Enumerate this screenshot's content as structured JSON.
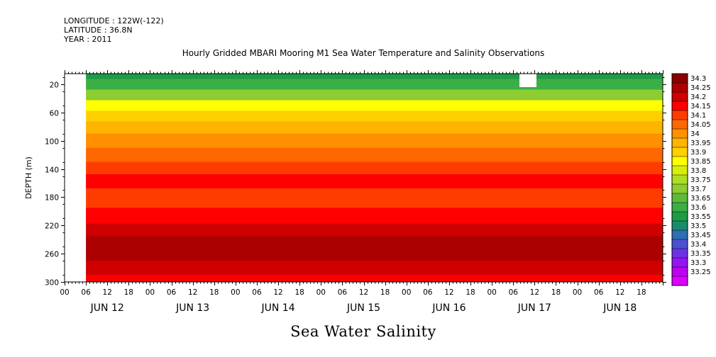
{
  "header": {
    "longitude": "LONGITUDE : 122W(-122)",
    "latitude": "LATITUDE : 36.8N",
    "year": "YEAR : 2011"
  },
  "chart_data": {
    "type": "heatmap",
    "title": "Hourly Gridded MBARI Mooring M1 Sea Water Temperature and Salinity Observations",
    "xlabel": "Sea Water Salinity",
    "ylabel": "DEPTH (m)",
    "x_hour_ticks": [
      "00",
      "06",
      "12",
      "18",
      "00",
      "06",
      "12",
      "18",
      "00",
      "06",
      "12",
      "18",
      "00",
      "06",
      "12",
      "18",
      "00",
      "06",
      "12",
      "18",
      "00",
      "06",
      "12",
      "18",
      "00",
      "06",
      "12",
      "18"
    ],
    "x_day_labels": [
      "JUN 12",
      "JUN 13",
      "JUN 14",
      "JUN 15",
      "JUN 16",
      "JUN 17",
      "JUN 18"
    ],
    "x_range_hours": [
      0,
      168
    ],
    "data_start_hour": 6,
    "y_ticks": [
      20,
      60,
      100,
      140,
      180,
      220,
      260,
      300
    ],
    "y_range": [
      300,
      5
    ],
    "y_reversed": true,
    "colorbar_levels": [
      "34.3",
      "34.25",
      "34.2",
      "34.15",
      "34.1",
      "34.05",
      "34",
      "33.95",
      "33.9",
      "33.85",
      "33.8",
      "33.75",
      "33.7",
      "33.65",
      "33.6",
      "33.55",
      "33.5",
      "33.45",
      "33.4",
      "33.35",
      "33.3",
      "33.25"
    ],
    "colorbar_colors": [
      "#8b0000",
      "#ad0000",
      "#cf0000",
      "#ff0000",
      "#ff3c00",
      "#ff6800",
      "#ff9000",
      "#ffb400",
      "#ffd000",
      "#ffff00",
      "#d7ee0a",
      "#afdd28",
      "#8ccd32",
      "#5fba3c",
      "#3cae46",
      "#1e9b46",
      "#198c6e",
      "#2d6eb4",
      "#4b50d2",
      "#6e32e6",
      "#9614f0",
      "#be00f0",
      "#dc00ff"
    ],
    "depth_profile": [
      {
        "depth": 5,
        "salinity": 33.58
      },
      {
        "depth": 20,
        "salinity": 33.62
      },
      {
        "depth": 35,
        "salinity": 33.72
      },
      {
        "depth": 50,
        "salinity": 33.85
      },
      {
        "depth": 65,
        "salinity": 33.92
      },
      {
        "depth": 80,
        "salinity": 33.98
      },
      {
        "depth": 100,
        "salinity": 34.02
      },
      {
        "depth": 120,
        "salinity": 34.07
      },
      {
        "depth": 140,
        "salinity": 34.12
      },
      {
        "depth": 155,
        "salinity": 34.16
      },
      {
        "depth": 180,
        "salinity": 34.13
      },
      {
        "depth": 210,
        "salinity": 34.16
      },
      {
        "depth": 225,
        "salinity": 34.21
      },
      {
        "depth": 245,
        "salinity": 34.26
      },
      {
        "depth": 260,
        "salinity": 34.26
      },
      {
        "depth": 280,
        "salinity": 34.21
      },
      {
        "depth": 300,
        "salinity": 34.15
      }
    ]
  }
}
